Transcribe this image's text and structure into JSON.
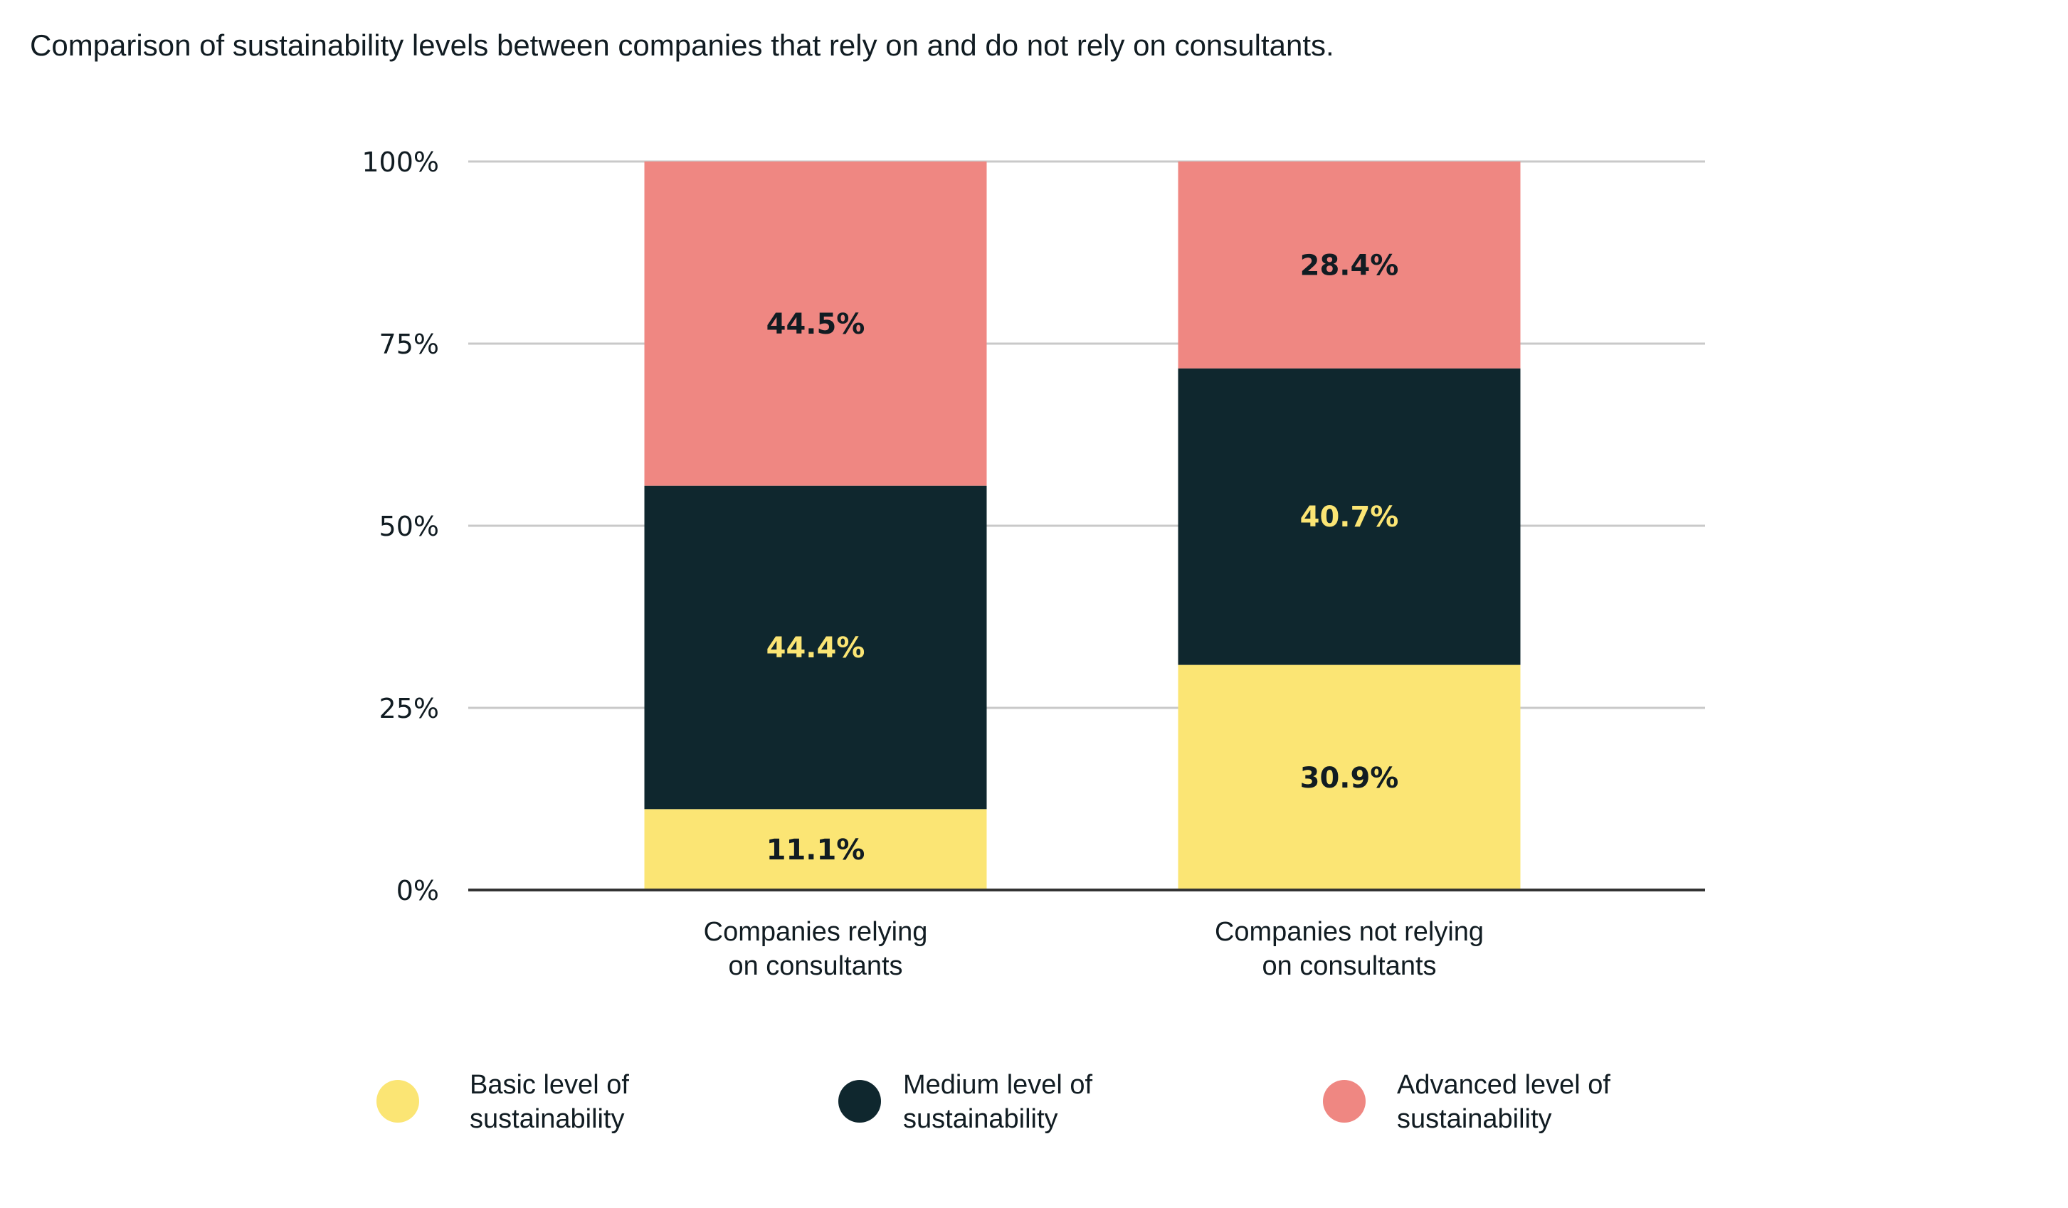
{
  "title": "Comparison of sustainability levels between companies that rely on and do not rely on consultants.",
  "chart_data": {
    "type": "bar",
    "stacked": true,
    "title": "Comparison of sustainability levels between companies that rely on and do not rely on consultants.",
    "categories": [
      [
        "Companies relying",
        "on consultants"
      ],
      [
        "Companies not relying",
        "on consultants"
      ]
    ],
    "series": [
      {
        "name": "Basic level of sustainability",
        "name_lines": [
          "Basic level of",
          "sustainability"
        ],
        "values": [
          11.1,
          30.9
        ],
        "labels": [
          "11.1%",
          "30.9%"
        ],
        "color": "#fbe574",
        "label_color": "#111c22"
      },
      {
        "name": "Medium level of sustainability",
        "name_lines": [
          "Medium level of",
          "sustainability"
        ],
        "values": [
          44.4,
          40.7
        ],
        "labels": [
          "44.4%",
          "40.7%"
        ],
        "color": "#0f272e",
        "label_color": "#fbe574"
      },
      {
        "name": "Advanced level of sustainability",
        "name_lines": [
          "Advanced level of",
          "sustainability"
        ],
        "values": [
          44.5,
          28.4
        ],
        "labels": [
          "44.5%",
          "28.4%"
        ],
        "color": "#ef8782",
        "label_color": "#111c22"
      }
    ],
    "yticks": [
      0,
      25,
      50,
      75,
      100
    ],
    "ytick_labels": [
      "0%",
      "25%",
      "50%",
      "75%",
      "100%"
    ],
    "ylim": [
      0,
      100
    ],
    "xlabel": "",
    "ylabel": "",
    "grid": true,
    "legend": "bottom"
  }
}
